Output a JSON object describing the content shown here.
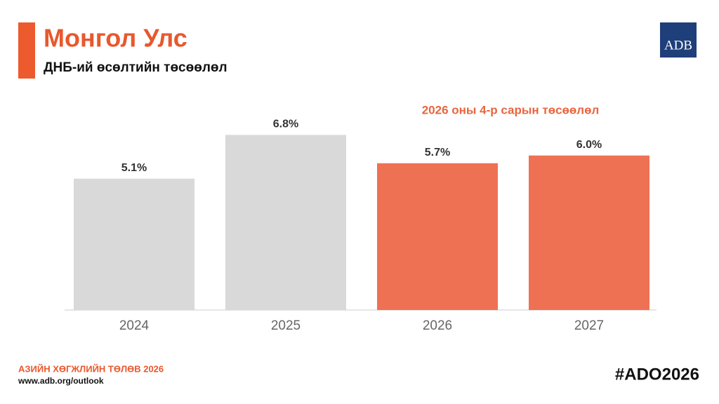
{
  "chart_data": {
    "type": "bar",
    "title": "Монгол Улс",
    "subtitle": "ДНБ-ий өсөлтийн төсөөлөл",
    "annotation": "2026 оны 4-р сарын төсөөлөл",
    "categories": [
      "2024",
      "2025",
      "2026",
      "2027"
    ],
    "values": [
      5.1,
      6.8,
      5.7,
      6.0
    ],
    "value_labels": [
      "5.1%",
      "6.8%",
      "5.7%",
      "6.0%"
    ],
    "colors": [
      "#d9d9d9",
      "#d9d9d9",
      "#ef7153",
      "#ef7153"
    ],
    "ylim": [
      0,
      7
    ],
    "grid": false
  },
  "logo": "ADB",
  "footer": {
    "report": "АЗИЙН ХӨГЖЛИЙН ТӨЛӨВ 2026",
    "url": "www.adb.org/outlook",
    "hashtag": "#ADO2026"
  }
}
